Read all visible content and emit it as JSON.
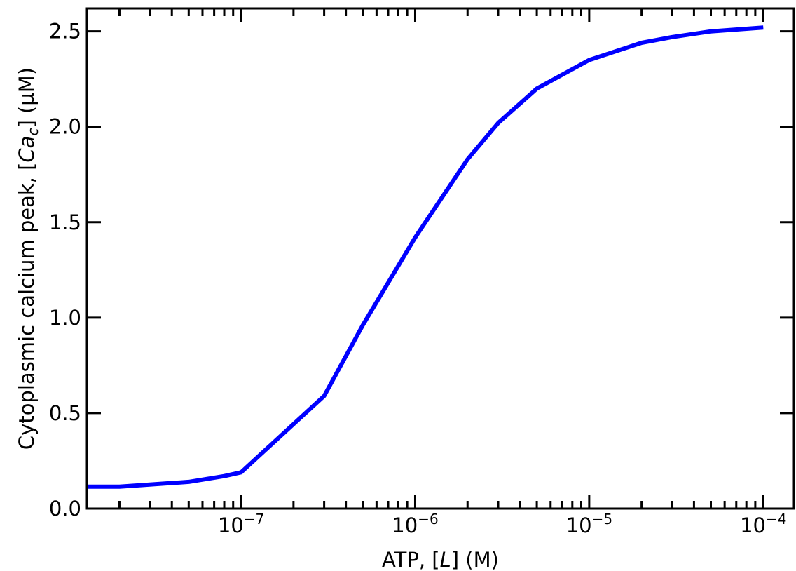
{
  "chart_data": {
    "type": "line",
    "title": "",
    "xlabel": "ATP, [L] (M)",
    "ylabel": "Cytoplasmic calcium peak, [Ca_c] (μM)",
    "x_scale": "log",
    "xlim": [
      1.3e-08,
      0.00015
    ],
    "ylim": [
      0,
      2.62
    ],
    "grid": false,
    "x_ticks": [
      1e-07,
      1e-06,
      1e-05,
      0.0001
    ],
    "x_tick_labels": [
      {
        "base": "10",
        "exp": "−7"
      },
      {
        "base": "10",
        "exp": "−6"
      },
      {
        "base": "10",
        "exp": "−5"
      },
      {
        "base": "10",
        "exp": "−4"
      }
    ],
    "y_ticks": [
      0.0,
      0.5,
      1.0,
      1.5,
      2.0,
      2.5
    ],
    "y_tick_labels": [
      "0.0",
      "0.5",
      "1.0",
      "1.5",
      "2.0",
      "2.5"
    ],
    "series": [
      {
        "color": "#0000ff",
        "x": [
          1.3e-08,
          2e-08,
          5e-08,
          8e-08,
          1e-07,
          3e-07,
          5e-07,
          1e-06,
          2e-06,
          3e-06,
          5e-06,
          1e-05,
          2e-05,
          3e-05,
          5e-05,
          0.0001
        ],
        "y": [
          0.115,
          0.115,
          0.14,
          0.17,
          0.19,
          0.59,
          0.96,
          1.42,
          1.83,
          2.02,
          2.2,
          2.35,
          2.44,
          2.47,
          2.5,
          2.52
        ]
      }
    ]
  }
}
